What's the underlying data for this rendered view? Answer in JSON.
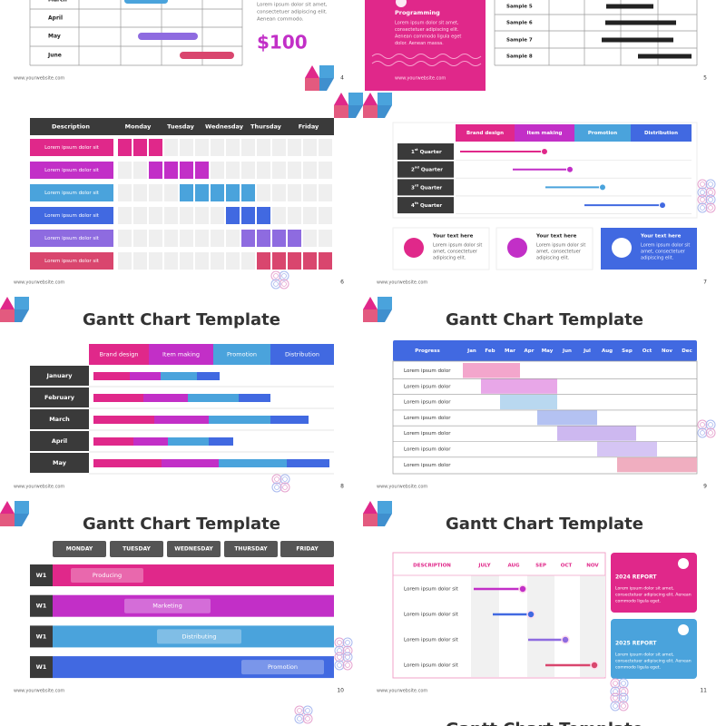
{
  "website": "www.yourwebsite.com",
  "slide4": {
    "number": "4",
    "rows": [
      "March",
      "April",
      "May",
      "June"
    ],
    "text": [
      "Lorem ipsum dolor sit amet,",
      "consectetuer adipiscing elit.",
      "Aenean commodo."
    ],
    "price": "$100"
  },
  "slide5": {
    "number": "5",
    "card_title": "Programming",
    "card_text": [
      "Lorem ipsum dolor sit amet,",
      "consectetuer adipiscing elit.",
      "Aenean commodo ligula eget",
      "dolor. Aenean massa."
    ],
    "rows": [
      "Sample 5",
      "Sample 6",
      "Sample 7",
      "Sample 8"
    ]
  },
  "slide6": {
    "number": "6",
    "headers": [
      "Description",
      "Monday",
      "Tuesday",
      "Wednesday",
      "Thursday",
      "Friday"
    ],
    "rows": [
      "Lorem ipsum dolor sit",
      "Lorem ipsum dolor sit",
      "Lorem ipsum dolor sit",
      "Lorem ipsum dolor sit",
      "Lorem ipsum dolor sit",
      "Lorem ipsum dolor sit"
    ]
  },
  "slide7": {
    "number": "7",
    "headers": [
      "Brand design",
      "Item making",
      "Promotion",
      "Distribution"
    ],
    "rows": [
      {
        "ordinal": "1",
        "suffix": "st",
        "label": "Quarter"
      },
      {
        "ordinal": "2",
        "suffix": "nd",
        "label": "Quarter"
      },
      {
        "ordinal": "3",
        "suffix": "rd",
        "label": "Quarter"
      },
      {
        "ordinal": "4",
        "suffix": "th",
        "label": "Quarter"
      }
    ],
    "cards": [
      {
        "title": "Your text here",
        "text": [
          "Lorem ipsum dolor sit",
          "amet, consectetuer",
          "adipiscing elit."
        ]
      },
      {
        "title": "Your text here",
        "text": [
          "Lorem ipsum dolor sit",
          "amet, consectetuer",
          "adipiscing elit."
        ]
      },
      {
        "title": "Your text here",
        "text": [
          "Lorem ipsum dolor sit",
          "amet, consectetuer",
          "adipiscing elit."
        ]
      }
    ]
  },
  "slide8": {
    "number": "8",
    "title": "Gantt Chart Template",
    "headers": [
      "Brand design",
      "Item making",
      "Promotion",
      "Distribution"
    ],
    "rows": [
      "January",
      "February",
      "March",
      "April",
      "May"
    ]
  },
  "slide9": {
    "number": "9",
    "title": "Gantt Chart Template",
    "headers": [
      "Progress",
      "Jan",
      "Feb",
      "Mar",
      "Apr",
      "May",
      "Jun",
      "Jul",
      "Aug",
      "Sep",
      "Oct",
      "Nov",
      "Dec"
    ],
    "rows": [
      "Lorem ipsum dolor",
      "Lorem ipsum dolor",
      "Lorem ipsum dolor",
      "Lorem ipsum dolor",
      "Lorem ipsum dolor",
      "Lorem ipsum dolor",
      "Lorem ipsum dolor"
    ]
  },
  "slide10": {
    "number": "10",
    "title": "Gantt Chart Template",
    "days": [
      "MONDAY",
      "TUESDAY",
      "WEDNESDAY",
      "THURSDAY",
      "FRIDAY"
    ],
    "rows": [
      {
        "week": "W1",
        "task": "Producing"
      },
      {
        "week": "W1",
        "task": "Marketing"
      },
      {
        "week": "W1",
        "task": "Distributing"
      },
      {
        "week": "W1",
        "task": "Promotion"
      }
    ]
  },
  "slide11": {
    "number": "11",
    "title": "Gantt Chart Template",
    "headers": [
      "DESCRIPTION",
      "JULY",
      "AUG",
      "SEP",
      "OCT",
      "NOV"
    ],
    "rows": [
      "Lorem ipsum dolor sit",
      "Lorem ipsum dolor sit",
      "Lorem ipsum dolor sit",
      "Lorem ipsum dolor sit"
    ],
    "cards": [
      {
        "title": "2024 REPORT",
        "text": [
          "Lorem ipsum dolor sit amet,",
          "consectetuer adipiscing elit. Aenean",
          "commodo ligula eget."
        ]
      },
      {
        "title": "2025 REPORT",
        "text": [
          "Lorem ipsum dolor sit amet,",
          "consectetuer adipiscing elit. Aenean",
          "commodo ligula eget."
        ]
      }
    ]
  },
  "slide13": {
    "title": "Gantt Chart Template"
  }
}
